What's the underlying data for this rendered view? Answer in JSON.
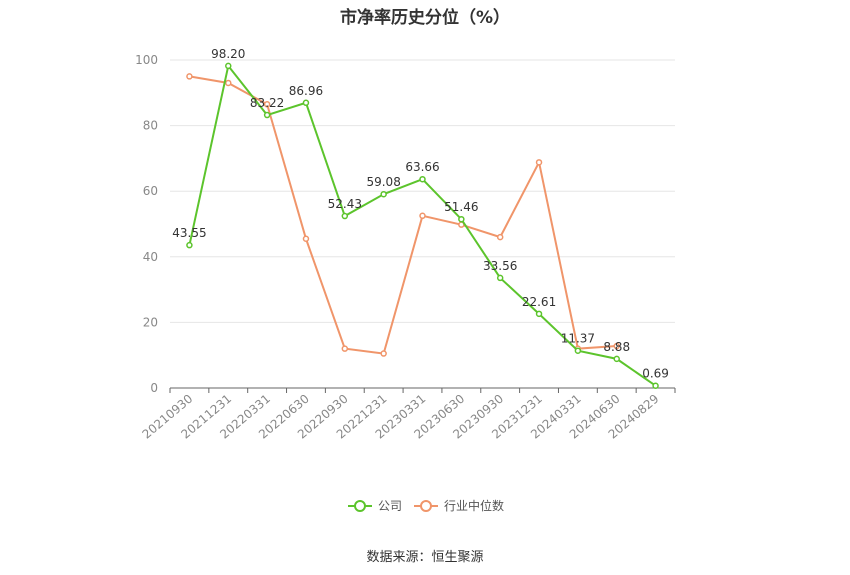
{
  "chart_data": {
    "type": "line",
    "title": "市净率历史分位（%）",
    "source": "数据来源：恒生聚源",
    "categories": [
      "20210930",
      "20211231",
      "20220331",
      "20220630",
      "20220930",
      "20221231",
      "20230331",
      "20230630",
      "20230930",
      "20231231",
      "20240331",
      "20240630",
      "20240829"
    ],
    "ylim": [
      0,
      100
    ],
    "yticks": [
      0,
      20,
      40,
      60,
      80,
      100
    ],
    "grid": true,
    "legend_position": "bottom-center",
    "series": [
      {
        "name": "公司",
        "color": "#5cc42c",
        "values": [
          43.55,
          98.2,
          83.22,
          86.96,
          52.43,
          59.08,
          63.66,
          51.46,
          33.56,
          22.61,
          11.37,
          8.88,
          0.69
        ],
        "labels": [
          "43.55",
          "98.20",
          "83.22",
          "86.96",
          "52.43",
          "59.08",
          "63.66",
          "51.46",
          "33.56",
          "22.61",
          "11.37",
          "8.88",
          "0.69"
        ]
      },
      {
        "name": "行业中位数",
        "color": "#f0956a",
        "values": [
          95.0,
          93.0,
          86.5,
          45.5,
          12.0,
          10.5,
          52.5,
          49.8,
          46.0,
          68.8,
          12.0,
          12.8,
          null
        ]
      }
    ]
  }
}
